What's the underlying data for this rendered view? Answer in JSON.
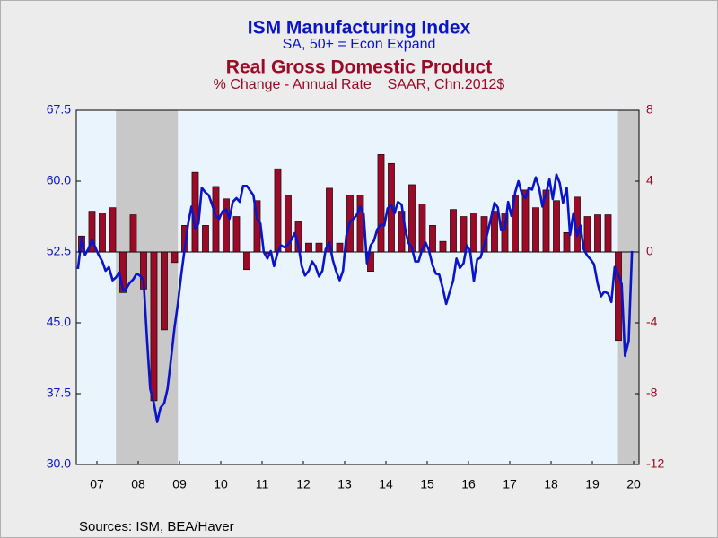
{
  "chart_data": {
    "type": "combo",
    "series": [
      {
        "name": "ISM Manufacturing Index",
        "subtitle": "SA, 50+ = Econ Expand",
        "type": "line",
        "color": "#0a14c8",
        "axis": "y",
        "x": [
          2007.04,
          2007.13,
          2007.21,
          2007.29,
          2007.38,
          2007.46,
          2007.54,
          2007.63,
          2007.71,
          2007.79,
          2007.88,
          2007.96,
          2008.04,
          2008.13,
          2008.21,
          2008.29,
          2008.38,
          2008.46,
          2008.54,
          2008.63,
          2008.71,
          2008.79,
          2008.88,
          2008.96,
          2009.04,
          2009.13,
          2009.21,
          2009.29,
          2009.38,
          2009.46,
          2009.54,
          2009.63,
          2009.71,
          2009.79,
          2009.88,
          2009.96,
          2010.04,
          2010.13,
          2010.21,
          2010.29,
          2010.38,
          2010.46,
          2010.54,
          2010.63,
          2010.71,
          2010.79,
          2010.88,
          2010.96,
          2011.04,
          2011.13,
          2011.21,
          2011.29,
          2011.38,
          2011.46,
          2011.54,
          2011.63,
          2011.71,
          2011.79,
          2011.88,
          2011.96,
          2012.04,
          2012.13,
          2012.21,
          2012.29,
          2012.38,
          2012.46,
          2012.54,
          2012.63,
          2012.71,
          2012.79,
          2012.88,
          2012.96,
          2013.04,
          2013.13,
          2013.21,
          2013.29,
          2013.38,
          2013.46,
          2013.54,
          2013.63,
          2013.71,
          2013.79,
          2013.88,
          2013.96,
          2014.04,
          2014.13,
          2014.21,
          2014.29,
          2014.38,
          2014.46,
          2014.54,
          2014.63,
          2014.71,
          2014.79,
          2014.88,
          2014.96,
          2015.04,
          2015.13,
          2015.21,
          2015.29,
          2015.38,
          2015.46,
          2015.54,
          2015.63,
          2015.71,
          2015.79,
          2015.88,
          2015.96,
          2016.04,
          2016.13,
          2016.21,
          2016.29,
          2016.38,
          2016.46,
          2016.54,
          2016.63,
          2016.71,
          2016.79,
          2016.88,
          2016.96,
          2017.04,
          2017.13,
          2017.21,
          2017.29,
          2017.38,
          2017.46,
          2017.54,
          2017.63,
          2017.71,
          2017.79,
          2017.88,
          2017.96,
          2018.04,
          2018.13,
          2018.21,
          2018.29,
          2018.38,
          2018.46,
          2018.54,
          2018.63,
          2018.71,
          2018.79,
          2018.88,
          2018.96,
          2019.04,
          2019.13,
          2019.21,
          2019.29,
          2019.38,
          2019.46,
          2019.54,
          2019.63,
          2019.71,
          2019.79,
          2019.88,
          2019.96,
          2020.04,
          2020.13,
          2020.21,
          2020.29,
          2020.38,
          2020.46
        ],
        "values": [
          50.7,
          54.0,
          52.2,
          52.8,
          53.8,
          53.0,
          52.2,
          51.5,
          50.5,
          50.9,
          49.5,
          49.8,
          50.3,
          48.5,
          48.6,
          49.2,
          49.6,
          50.2,
          50.0,
          49.5,
          43.5,
          38.0,
          36.5,
          34.5,
          36.0,
          36.5,
          38.0,
          41.0,
          44.5,
          47.0,
          50.0,
          53.0,
          55.5,
          57.3,
          55.0,
          55.5,
          59.3,
          58.8,
          58.5,
          57.5,
          56.3,
          56.0,
          56.8,
          57.0,
          56.0,
          57.8,
          58.2,
          57.8,
          59.5,
          59.5,
          59.0,
          58.5,
          56.0,
          55.5,
          52.5,
          51.8,
          52.6,
          51.0,
          52.5,
          53.2,
          53.0,
          53.3,
          53.8,
          54.5,
          53.2,
          51.0,
          50.0,
          50.5,
          51.5,
          51.0,
          49.9,
          50.5,
          52.8,
          53.5,
          51.7,
          50.5,
          49.5,
          50.5,
          54.2,
          55.7,
          56.0,
          56.4,
          57.3,
          56.5,
          51.3,
          53.2,
          53.7,
          54.9,
          55.4,
          55.3,
          57.1,
          57.5,
          56.6,
          57.8,
          57.5,
          55.1,
          53.5,
          52.9,
          51.5,
          51.5,
          52.8,
          53.5,
          52.7,
          51.1,
          50.2,
          50.1,
          48.6,
          47.0,
          48.2,
          49.5,
          51.8,
          50.8,
          51.3,
          53.2,
          52.6,
          49.4,
          51.7,
          51.9,
          53.2,
          54.5,
          56.0,
          57.7,
          57.2,
          54.8,
          54.9,
          57.8,
          56.3,
          58.8,
          60.0,
          58.7,
          58.2,
          59.3,
          59.1,
          60.4,
          59.3,
          57.3,
          58.7,
          60.2,
          58.1,
          60.7,
          59.8,
          57.7,
          59.3,
          54.3,
          56.6,
          54.2,
          55.3,
          52.8,
          52.1,
          51.7,
          51.2,
          49.1,
          47.8,
          48.3,
          48.1,
          47.2,
          50.9,
          50.1,
          49.1,
          41.5,
          43.1,
          52.6
        ]
      },
      {
        "name": "Real Gross Domestic Product",
        "subtitle": "% Change - Annual Rate    SAAR, Chn.2012$",
        "type": "bar",
        "color": "#9b0a26",
        "axis": "y2",
        "x": [
          2007.13,
          2007.38,
          2007.63,
          2007.88,
          2008.13,
          2008.38,
          2008.63,
          2008.88,
          2009.13,
          2009.38,
          2009.63,
          2009.88,
          2010.13,
          2010.38,
          2010.63,
          2010.88,
          2011.13,
          2011.38,
          2011.63,
          2011.88,
          2012.13,
          2012.38,
          2012.63,
          2012.88,
          2013.13,
          2013.38,
          2013.63,
          2013.88,
          2014.13,
          2014.38,
          2014.63,
          2014.88,
          2015.13,
          2015.38,
          2015.63,
          2015.88,
          2016.13,
          2016.38,
          2016.63,
          2016.88,
          2017.13,
          2017.38,
          2017.63,
          2017.88,
          2018.13,
          2018.38,
          2018.63,
          2018.88,
          2019.13,
          2019.38,
          2019.63,
          2019.88,
          2020.13
        ],
        "values": [
          0.9,
          2.3,
          2.2,
          2.5,
          -2.3,
          2.1,
          -2.1,
          -8.4,
          -4.4,
          -0.6,
          1.5,
          4.5,
          1.5,
          3.7,
          3.0,
          2.0,
          -1.0,
          2.9,
          -0.1,
          4.7,
          3.2,
          1.7,
          0.5,
          0.5,
          3.6,
          0.5,
          3.2,
          3.2,
          -1.1,
          5.5,
          5.0,
          2.3,
          3.8,
          2.7,
          1.5,
          0.6,
          2.4,
          2.0,
          2.2,
          2.0,
          2.3,
          2.2,
          3.2,
          3.5,
          2.5,
          3.5,
          2.9,
          1.1,
          3.1,
          2.0,
          2.1,
          2.1,
          -5.0
        ]
      }
    ],
    "shaded_periods": [
      [
        2007.96,
        2009.46
      ],
      [
        2020.12,
        2020.63
      ]
    ],
    "xlim": [
      2007,
      2020.63
    ],
    "xticks": [
      {
        "value": 2007.5,
        "label": "07"
      },
      {
        "value": 2008.5,
        "label": "08"
      },
      {
        "value": 2009.5,
        "label": "09"
      },
      {
        "value": 2010.5,
        "label": "10"
      },
      {
        "value": 2011.5,
        "label": "11"
      },
      {
        "value": 2012.5,
        "label": "12"
      },
      {
        "value": 2013.5,
        "label": "13"
      },
      {
        "value": 2014.5,
        "label": "14"
      },
      {
        "value": 2015.5,
        "label": "15"
      },
      {
        "value": 2016.5,
        "label": "16"
      },
      {
        "value": 2017.5,
        "label": "17"
      },
      {
        "value": 2018.5,
        "label": "18"
      },
      {
        "value": 2019.5,
        "label": "19"
      },
      {
        "value": 2020.5,
        "label": "20"
      }
    ],
    "ylim": [
      30,
      67.5
    ],
    "yticks": [
      {
        "value": 30,
        "label": "30.0"
      },
      37.5,
      {
        "value": 45,
        "label": "45.0"
      },
      52.5,
      {
        "value": 60,
        "label": "60.0"
      },
      67.5
    ],
    "y2lim": [
      -12,
      8
    ],
    "y2ticks": [
      -12,
      -8,
      -4,
      0,
      4,
      8
    ],
    "source": "Sources:  ISM, BEA/Haver"
  }
}
